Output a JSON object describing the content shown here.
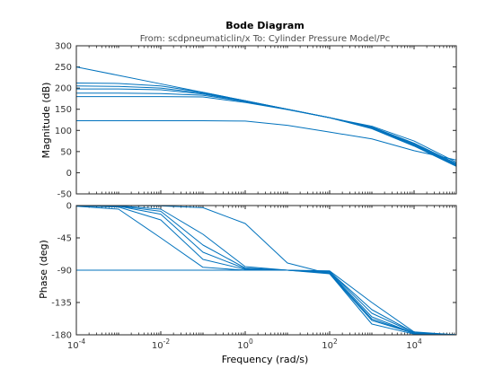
{
  "chart_data": {
    "type": "line",
    "title": "Bode Diagram",
    "subtitle": "From: scdpneumaticlin/x  To: Cylinder Pressure Model/Pc",
    "xlabel": "Frequency  (rad/s)",
    "x_scale": "log",
    "xlim": [
      0.0001,
      100000
    ],
    "x_ticks": [
      {
        "value": 0.0001,
        "base": "10",
        "exp": "-4"
      },
      {
        "value": 0.01,
        "base": "10",
        "exp": "-2"
      },
      {
        "value": 1,
        "base": "10",
        "exp": "0"
      },
      {
        "value": 100,
        "base": "10",
        "exp": "2"
      },
      {
        "value": 10000,
        "base": "10",
        "exp": "4"
      }
    ],
    "line_color": "#0072bd",
    "frequencies": [
      0.0001,
      0.001,
      0.01,
      0.1,
      1,
      10,
      100,
      1000,
      10000,
      100000
    ],
    "magnitude": {
      "ylabel": "Magnitude (dB)",
      "ylim": [
        -50,
        300
      ],
      "yticks": [
        -50,
        0,
        50,
        100,
        150,
        200,
        250,
        300
      ],
      "series": [
        {
          "values": [
            250,
            230,
            210,
            190,
            170,
            150,
            130,
            110,
            75,
            25
          ]
        },
        {
          "values": [
            212,
            211,
            205,
            190,
            170,
            150,
            130,
            108,
            70,
            22
          ]
        },
        {
          "values": [
            205,
            204,
            200,
            188,
            170,
            150,
            130,
            107,
            68,
            20
          ]
        },
        {
          "values": [
            198,
            198,
            196,
            186,
            169,
            150,
            130,
            106,
            66,
            18
          ]
        },
        {
          "values": [
            188,
            188,
            187,
            183,
            168,
            150,
            130,
            105,
            64,
            17
          ]
        },
        {
          "values": [
            180,
            180,
            180,
            179,
            166,
            149,
            130,
            104,
            63,
            15
          ]
        },
        {
          "values": [
            123,
            123,
            123,
            123,
            122,
            112,
            96,
            80,
            52,
            30
          ]
        }
      ]
    },
    "phase": {
      "ylabel": "Phase (deg)",
      "ylim": [
        -180,
        0
      ],
      "yticks": [
        -180,
        -135,
        -90,
        -45,
        0
      ],
      "series": [
        {
          "values": [
            -90,
            -90,
            -90,
            -90,
            -90,
            -90,
            -91,
            -135,
            -176,
            -180
          ]
        },
        {
          "values": [
            -1,
            -5,
            -45,
            -86,
            -90,
            -90,
            -92,
            -145,
            -177,
            -180
          ]
        },
        {
          "values": [
            -0.5,
            -2,
            -20,
            -75,
            -89,
            -90,
            -92,
            -150,
            -177,
            -180
          ]
        },
        {
          "values": [
            -0.3,
            -1,
            -12,
            -65,
            -88,
            -90,
            -93,
            -155,
            -178,
            -180
          ]
        },
        {
          "values": [
            -0.2,
            -0.7,
            -8,
            -55,
            -87,
            -90,
            -94,
            -158,
            -178,
            -180
          ]
        },
        {
          "values": [
            -0.1,
            -0.4,
            -5,
            -40,
            -85,
            -90,
            -95,
            -160,
            -178,
            -180
          ]
        },
        {
          "values": [
            0,
            0,
            -0.5,
            -3,
            -25,
            -80,
            -95,
            -165,
            -179,
            -180
          ]
        }
      ]
    }
  }
}
